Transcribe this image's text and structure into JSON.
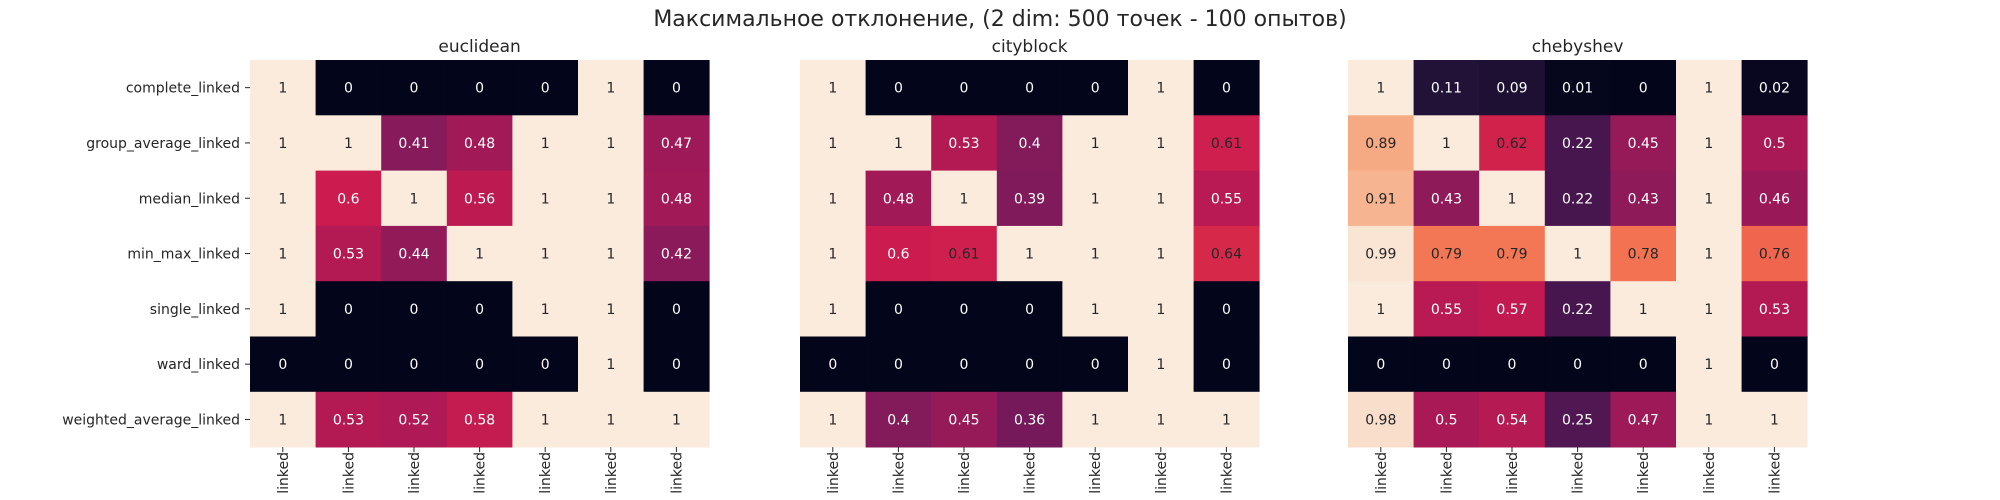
{
  "figure": {
    "title": "Максимальное отклонение, (2 dim: 500 точек - 100 опытов)"
  },
  "colors": {
    "background": "#ffffff",
    "text_dark": "#262626",
    "text_light": "#ffffff",
    "colormap": "rocket"
  },
  "chart_data": [
    {
      "type": "heatmap",
      "title": "euclidean",
      "row_labels": [
        "complete_linked",
        "group_average_linked",
        "median_linked",
        "min_max_linked",
        "single_linked",
        "ward_linked",
        "weighted_average_linked"
      ],
      "col_labels": [
        "linked",
        "linked",
        "linked",
        "linked",
        "linked",
        "linked",
        "linked"
      ],
      "values": [
        [
          1,
          0,
          0,
          0,
          0,
          1,
          0
        ],
        [
          1,
          1,
          0.41,
          0.48,
          1,
          1,
          0.47
        ],
        [
          1,
          0.6,
          1,
          0.56,
          1,
          1,
          0.48
        ],
        [
          1,
          0.53,
          0.44,
          1,
          1,
          1,
          0.42
        ],
        [
          1,
          0,
          0,
          0,
          1,
          1,
          0
        ],
        [
          0,
          0,
          0,
          0,
          0,
          1,
          0
        ],
        [
          1,
          0.53,
          0.52,
          0.58,
          1,
          1,
          1
        ]
      ],
      "value_range": [
        0,
        1
      ]
    },
    {
      "type": "heatmap",
      "title": "cityblock",
      "row_labels": [
        "complete_linked",
        "group_average_linked",
        "median_linked",
        "min_max_linked",
        "single_linked",
        "ward_linked",
        "weighted_average_linked"
      ],
      "col_labels": [
        "linked",
        "linked",
        "linked",
        "linked",
        "linked",
        "linked",
        "linked"
      ],
      "values": [
        [
          1,
          0,
          0,
          0,
          0,
          1,
          0
        ],
        [
          1,
          1,
          0.53,
          0.4,
          1,
          1,
          0.61
        ],
        [
          1,
          0.48,
          1,
          0.39,
          1,
          1,
          0.55
        ],
        [
          1,
          0.6,
          0.61,
          1,
          1,
          1,
          0.64
        ],
        [
          1,
          0,
          0,
          0,
          1,
          1,
          0
        ],
        [
          0,
          0,
          0,
          0,
          0,
          1,
          0
        ],
        [
          1,
          0.4,
          0.45,
          0.36,
          1,
          1,
          1
        ]
      ],
      "value_range": [
        0,
        1
      ]
    },
    {
      "type": "heatmap",
      "title": "chebyshev",
      "row_labels": [
        "complete_linked",
        "group_average_linked",
        "median_linked",
        "min_max_linked",
        "single_linked",
        "ward_linked",
        "weighted_average_linked"
      ],
      "col_labels": [
        "linked",
        "linked",
        "linked",
        "linked",
        "linked",
        "linked",
        "linked"
      ],
      "values": [
        [
          1,
          0.11,
          0.09,
          0.01,
          0,
          1,
          0.02
        ],
        [
          0.89,
          1,
          0.62,
          0.22,
          0.45,
          1,
          0.5
        ],
        [
          0.91,
          0.43,
          1,
          0.22,
          0.43,
          1,
          0.46
        ],
        [
          0.99,
          0.79,
          0.79,
          1,
          0.78,
          1,
          0.76
        ],
        [
          1,
          0.55,
          0.57,
          0.22,
          1,
          1,
          0.53
        ],
        [
          0,
          0,
          0,
          0,
          0,
          1,
          0
        ],
        [
          0.98,
          0.5,
          0.54,
          0.25,
          0.47,
          1,
          1
        ]
      ],
      "value_range": [
        0,
        1
      ]
    }
  ]
}
